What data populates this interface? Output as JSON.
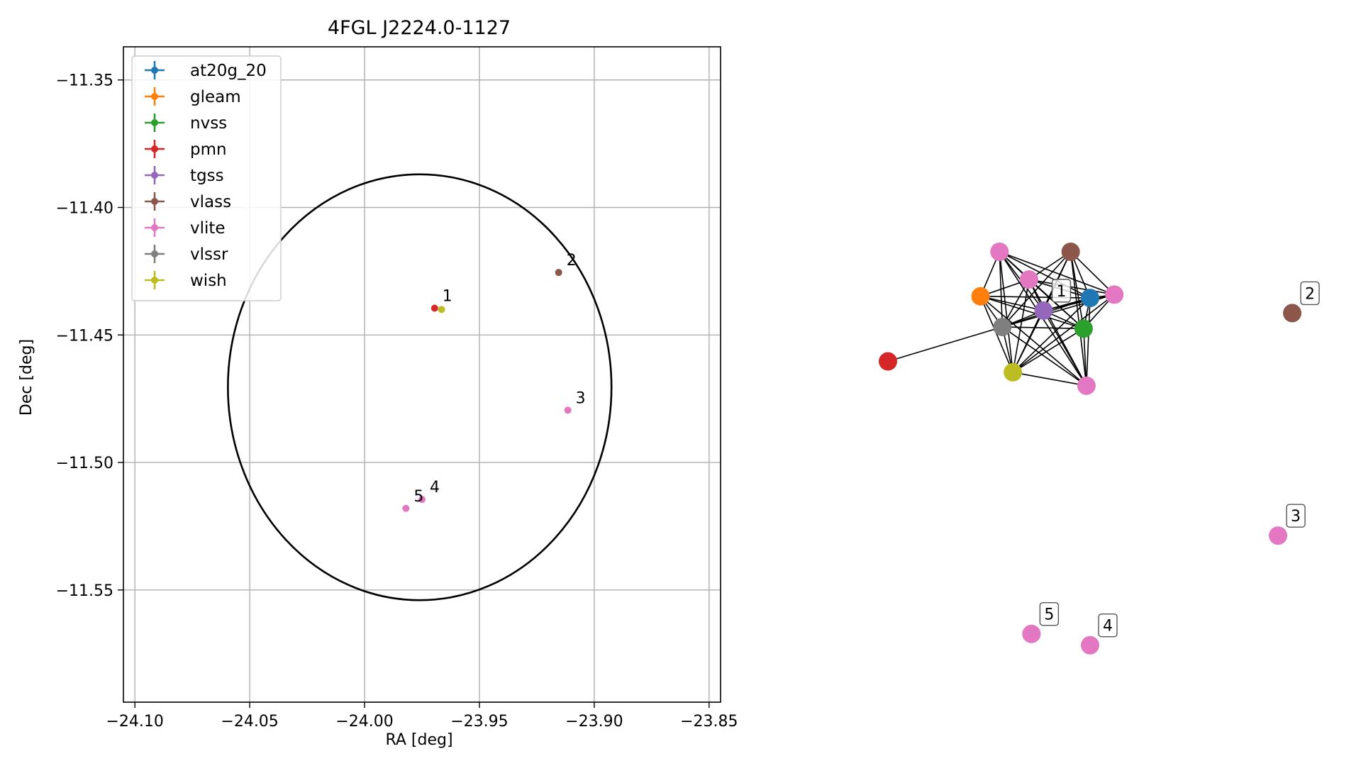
{
  "chart_data": [
    {
      "type": "scatter",
      "title": "4FGL J2224.0-1127",
      "xlabel": "RA [deg]",
      "ylabel": "Dec [deg]",
      "xlim": [
        -24.105,
        -23.845
      ],
      "ylim": [
        -11.594,
        -11.337
      ],
      "xticks": [
        -24.1,
        -24.05,
        -24.0,
        -23.95,
        -23.9,
        -23.85
      ],
      "xtick_labels": [
        "−24.10",
        "−24.05",
        "−24.00",
        "−23.95",
        "−23.90",
        "−23.85"
      ],
      "yticks": [
        -11.35,
        -11.4,
        -11.45,
        -11.5,
        -11.55
      ],
      "ytick_labels": [
        "−11.35",
        "−11.40",
        "−11.45",
        "−11.50",
        "−11.55"
      ],
      "grid": true,
      "legend_position": "top-left",
      "legend": [
        {
          "name": "at20g_20",
          "color": "#1f77b4"
        },
        {
          "name": "gleam",
          "color": "#ff7f0e"
        },
        {
          "name": "nvss",
          "color": "#2ca02c"
        },
        {
          "name": "pmn",
          "color": "#d62728"
        },
        {
          "name": "tgss",
          "color": "#9467bd"
        },
        {
          "name": "vlass",
          "color": "#8c564b"
        },
        {
          "name": "vlite",
          "color": "#e377c2"
        },
        {
          "name": "vlssr",
          "color": "#7f7f7f"
        },
        {
          "name": "wish",
          "color": "#bcbd22"
        }
      ],
      "ellipse": {
        "center_ra": -23.976,
        "center_dec": -11.4705,
        "semi_ra": 0.0835,
        "semi_dec": 0.0835
      },
      "points": [
        {
          "label": "1",
          "ra": -23.9695,
          "dec": -11.4395,
          "color": "#d62728"
        },
        {
          "label": "",
          "ra": -23.9665,
          "dec": -11.44,
          "color": "#bcbd22"
        },
        {
          "label": "2",
          "ra": -23.9155,
          "dec": -11.4255,
          "color": "#8c564b"
        },
        {
          "label": "3",
          "ra": -23.9115,
          "dec": -11.4795,
          "color": "#e377c2"
        },
        {
          "label": "4",
          "ra": -23.975,
          "dec": -11.5145,
          "color": "#e377c2"
        },
        {
          "label": "5",
          "ra": -23.982,
          "dec": -11.518,
          "color": "#e377c2"
        }
      ]
    },
    {
      "type": "network",
      "nodes": [
        {
          "id": "at20g_20",
          "color": "#1f77b4",
          "nx": 0.5,
          "ny": 0.11,
          "label": ""
        },
        {
          "id": "gleam",
          "color": "#ff7f0e",
          "nx": 0.229,
          "ny": 0.106,
          "label": ""
        },
        {
          "id": "nvss",
          "color": "#2ca02c",
          "nx": 0.484,
          "ny": 0.183,
          "label": ""
        },
        {
          "id": "pmn",
          "color": "#d62728",
          "nx": 0.0,
          "ny": 0.261,
          "label": ""
        },
        {
          "id": "tgss",
          "color": "#9467bd",
          "nx": 0.385,
          "ny": 0.14,
          "label": "1"
        },
        {
          "id": "vlass_a",
          "color": "#8c564b",
          "nx": 0.452,
          "ny": 0.0,
          "label": ""
        },
        {
          "id": "vlite_a",
          "color": "#e377c2",
          "nx": 0.276,
          "ny": 0.0,
          "label": ""
        },
        {
          "id": "vlite_b",
          "color": "#e377c2",
          "nx": 0.349,
          "ny": 0.066,
          "label": ""
        },
        {
          "id": "vlite_c",
          "color": "#e377c2",
          "nx": 0.56,
          "ny": 0.102,
          "label": ""
        },
        {
          "id": "vlite_d",
          "color": "#e377c2",
          "nx": 0.491,
          "ny": 0.319,
          "label": ""
        },
        {
          "id": "vlssr",
          "color": "#7f7f7f",
          "nx": 0.283,
          "ny": 0.179,
          "label": ""
        },
        {
          "id": "wish",
          "color": "#bcbd22",
          "nx": 0.309,
          "ny": 0.287,
          "label": ""
        },
        {
          "id": "vlass_2",
          "color": "#8c564b",
          "nx": 1.0,
          "ny": 0.146,
          "label": "2"
        },
        {
          "id": "vlite_3",
          "color": "#e377c2",
          "nx": 0.965,
          "ny": 0.676,
          "label": "3"
        },
        {
          "id": "vlite_4",
          "color": "#e377c2",
          "nx": 0.5,
          "ny": 0.937,
          "label": "4"
        },
        {
          "id": "vlite_5",
          "color": "#e377c2",
          "nx": 0.355,
          "ny": 0.91,
          "label": "5"
        }
      ],
      "edges": [
        [
          "pmn",
          "vlssr"
        ],
        [
          "gleam",
          "vlite_a"
        ],
        [
          "gleam",
          "vlite_b"
        ],
        [
          "gleam",
          "tgss"
        ],
        [
          "gleam",
          "at20g_20"
        ],
        [
          "gleam",
          "nvss"
        ],
        [
          "gleam",
          "vlssr"
        ],
        [
          "gleam",
          "wish"
        ],
        [
          "gleam",
          "vlite_d"
        ],
        [
          "vlite_a",
          "vlite_b"
        ],
        [
          "vlite_a",
          "tgss"
        ],
        [
          "vlite_a",
          "at20g_20"
        ],
        [
          "vlite_a",
          "nvss"
        ],
        [
          "vlite_a",
          "vlssr"
        ],
        [
          "vlite_a",
          "wish"
        ],
        [
          "vlite_a",
          "vlite_c"
        ],
        [
          "vlite_a",
          "vlite_d"
        ],
        [
          "vlite_b",
          "vlass_a"
        ],
        [
          "vlite_b",
          "tgss"
        ],
        [
          "vlite_b",
          "at20g_20"
        ],
        [
          "vlite_b",
          "nvss"
        ],
        [
          "vlite_b",
          "vlssr"
        ],
        [
          "vlite_b",
          "wish"
        ],
        [
          "vlite_b",
          "vlite_c"
        ],
        [
          "vlite_b",
          "vlite_d"
        ],
        [
          "vlass_a",
          "tgss"
        ],
        [
          "vlass_a",
          "at20g_20"
        ],
        [
          "vlass_a",
          "nvss"
        ],
        [
          "vlass_a",
          "vlite_c"
        ],
        [
          "vlass_a",
          "vlssr"
        ],
        [
          "vlass_a",
          "wish"
        ],
        [
          "vlass_a",
          "vlite_d"
        ],
        [
          "tgss",
          "at20g_20"
        ],
        [
          "tgss",
          "nvss"
        ],
        [
          "tgss",
          "vlssr"
        ],
        [
          "tgss",
          "wish"
        ],
        [
          "tgss",
          "vlite_c"
        ],
        [
          "tgss",
          "vlite_d"
        ],
        [
          "at20g_20",
          "nvss"
        ],
        [
          "at20g_20",
          "vlite_c"
        ],
        [
          "at20g_20",
          "vlssr"
        ],
        [
          "at20g_20",
          "wish"
        ],
        [
          "at20g_20",
          "vlite_d"
        ],
        [
          "nvss",
          "vlite_c"
        ],
        [
          "nvss",
          "vlssr"
        ],
        [
          "nvss",
          "wish"
        ],
        [
          "nvss",
          "vlite_d"
        ],
        [
          "vlite_c",
          "vlssr"
        ],
        [
          "vlite_c",
          "wish"
        ],
        [
          "vlssr",
          "wish"
        ],
        [
          "vlssr",
          "vlite_d"
        ],
        [
          "wish",
          "vlite_d"
        ]
      ]
    }
  ]
}
